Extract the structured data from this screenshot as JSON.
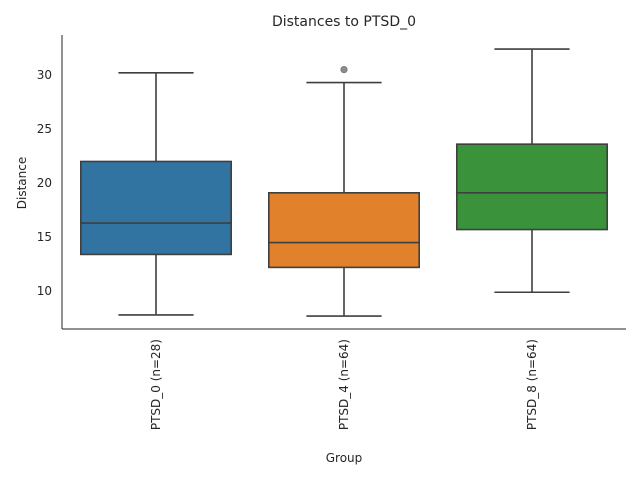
{
  "chart_data": {
    "type": "box",
    "title": "Distances to PTSD_0",
    "xlabel": "Group",
    "ylabel": "Distance",
    "ylim": [
      6.5,
      33.7
    ],
    "yticks": [
      10,
      15,
      20,
      25,
      30
    ],
    "categories": [
      "PTSD_0 (n=28)",
      "PTSD_4 (n=64)",
      "PTSD_8 (n=64)"
    ],
    "boxes": [
      {
        "category": "PTSD_0 (n=28)",
        "whisker_low": 7.8,
        "q1": 13.4,
        "median": 16.3,
        "q3": 22.0,
        "whisker_high": 30.2,
        "outliers": [],
        "color": "#3274a1"
      },
      {
        "category": "PTSD_4 (n=64)",
        "whisker_low": 7.7,
        "q1": 12.2,
        "median": 14.5,
        "q3": 19.1,
        "whisker_high": 29.3,
        "outliers": [
          30.5
        ],
        "color": "#e1812c"
      },
      {
        "category": "PTSD_8 (n=64)",
        "whisker_low": 9.9,
        "q1": 15.7,
        "median": 19.1,
        "q3": 23.6,
        "whisker_high": 32.4,
        "outliers": [],
        "color": "#3a923a"
      }
    ],
    "grid": false,
    "legend": "none"
  }
}
